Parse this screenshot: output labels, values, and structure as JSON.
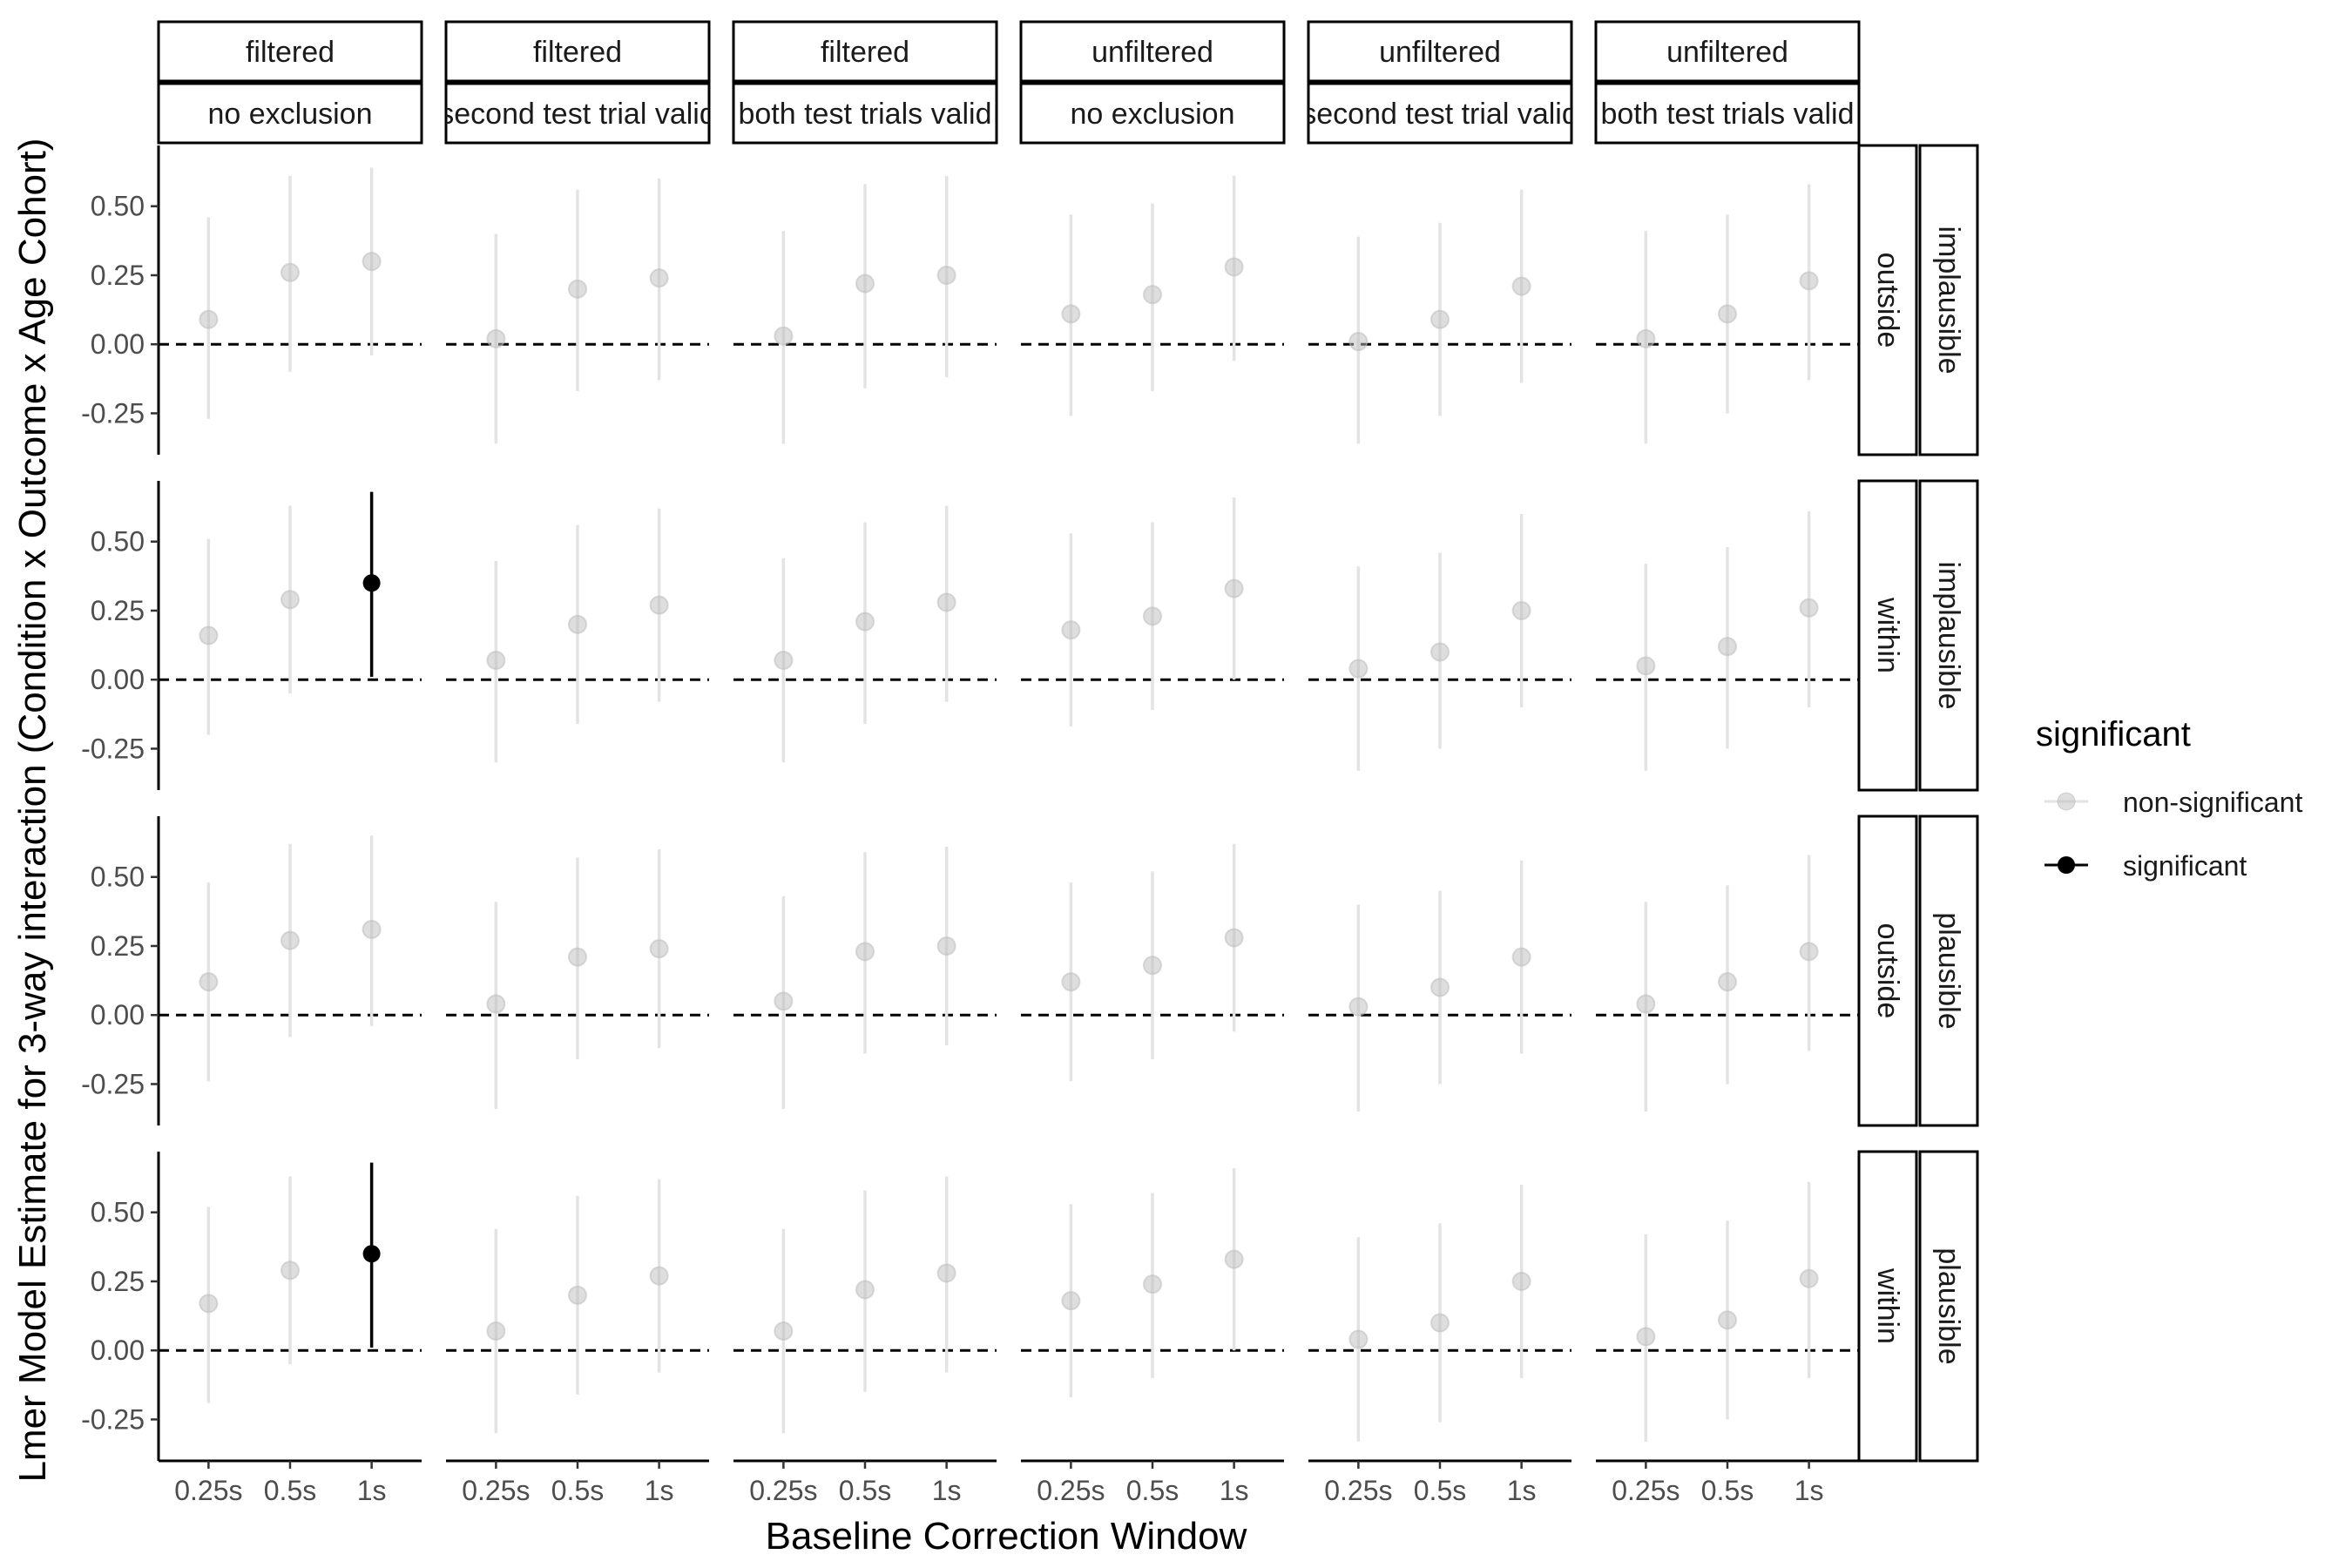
{
  "chart_data": {
    "type": "scatter",
    "title": "",
    "xlabel": "Baseline Correction Window",
    "ylabel": "Lmer Model Estimate for 3-way interaction (Condition x Outcome x Age Cohort)",
    "x_categories": [
      "0.25s",
      "0.5s",
      "1s"
    ],
    "y_ticks": [
      -0.25,
      0.0,
      0.25,
      0.5
    ],
    "y_tick_labels": [
      "-0.25",
      "0.00",
      "0.25",
      "0.50"
    ],
    "ylim": [
      -0.4,
      0.72
    ],
    "reference_line": 0,
    "columns": [
      {
        "top": "filtered",
        "bottom": "no exclusion"
      },
      {
        "top": "filtered",
        "bottom": "second test trial valid"
      },
      {
        "top": "filtered",
        "bottom": "both test trials valid"
      },
      {
        "top": "unfiltered",
        "bottom": "no exclusion"
      },
      {
        "top": "unfiltered",
        "bottom": "second test trial valid"
      },
      {
        "top": "unfiltered",
        "bottom": "both test trials valid"
      }
    ],
    "rows": [
      {
        "inner": "outside",
        "outer": "implausible"
      },
      {
        "inner": "within",
        "outer": "implausible"
      },
      {
        "inner": "outside",
        "outer": "plausible"
      },
      {
        "inner": "within",
        "outer": "plausible"
      }
    ],
    "legend": {
      "title": "significant",
      "items": [
        {
          "label": "non-significant",
          "color": "#bdbdbd"
        },
        {
          "label": "significant",
          "color": "#000000"
        }
      ]
    },
    "colors": {
      "non_significant": "#bdbdbd",
      "significant": "#000000",
      "errorbar_ns": "#e3e3e3"
    },
    "panels": [
      [
        [
          {
            "x": "0.25s",
            "est": 0.09,
            "lo": -0.27,
            "hi": 0.46,
            "sig": false
          },
          {
            "x": "0.5s",
            "est": 0.26,
            "lo": -0.1,
            "hi": 0.61,
            "sig": false
          },
          {
            "x": "1s",
            "est": 0.3,
            "lo": -0.04,
            "hi": 0.64,
            "sig": false
          }
        ],
        [
          {
            "x": "0.25s",
            "est": 0.02,
            "lo": -0.36,
            "hi": 0.4,
            "sig": false
          },
          {
            "x": "0.5s",
            "est": 0.2,
            "lo": -0.17,
            "hi": 0.56,
            "sig": false
          },
          {
            "x": "1s",
            "est": 0.24,
            "lo": -0.13,
            "hi": 0.6,
            "sig": false
          }
        ],
        [
          {
            "x": "0.25s",
            "est": 0.03,
            "lo": -0.36,
            "hi": 0.41,
            "sig": false
          },
          {
            "x": "0.5s",
            "est": 0.22,
            "lo": -0.16,
            "hi": 0.58,
            "sig": false
          },
          {
            "x": "1s",
            "est": 0.25,
            "lo": -0.12,
            "hi": 0.61,
            "sig": false
          }
        ],
        [
          {
            "x": "0.25s",
            "est": 0.11,
            "lo": -0.26,
            "hi": 0.47,
            "sig": false
          },
          {
            "x": "0.5s",
            "est": 0.18,
            "lo": -0.17,
            "hi": 0.51,
            "sig": false
          },
          {
            "x": "1s",
            "est": 0.28,
            "lo": -0.06,
            "hi": 0.61,
            "sig": false
          }
        ],
        [
          {
            "x": "0.25s",
            "est": 0.01,
            "lo": -0.36,
            "hi": 0.39,
            "sig": false
          },
          {
            "x": "0.5s",
            "est": 0.09,
            "lo": -0.26,
            "hi": 0.44,
            "sig": false
          },
          {
            "x": "1s",
            "est": 0.21,
            "lo": -0.14,
            "hi": 0.56,
            "sig": false
          }
        ],
        [
          {
            "x": "0.25s",
            "est": 0.02,
            "lo": -0.36,
            "hi": 0.41,
            "sig": false
          },
          {
            "x": "0.5s",
            "est": 0.11,
            "lo": -0.25,
            "hi": 0.47,
            "sig": false
          },
          {
            "x": "1s",
            "est": 0.23,
            "lo": -0.13,
            "hi": 0.58,
            "sig": false
          }
        ]
      ],
      [
        [
          {
            "x": "0.25s",
            "est": 0.16,
            "lo": -0.2,
            "hi": 0.51,
            "sig": false
          },
          {
            "x": "0.5s",
            "est": 0.29,
            "lo": -0.05,
            "hi": 0.63,
            "sig": false
          },
          {
            "x": "1s",
            "est": 0.35,
            "lo": 0.01,
            "hi": 0.68,
            "sig": true
          }
        ],
        [
          {
            "x": "0.25s",
            "est": 0.07,
            "lo": -0.3,
            "hi": 0.43,
            "sig": false
          },
          {
            "x": "0.5s",
            "est": 0.2,
            "lo": -0.16,
            "hi": 0.56,
            "sig": false
          },
          {
            "x": "1s",
            "est": 0.27,
            "lo": -0.08,
            "hi": 0.62,
            "sig": false
          }
        ],
        [
          {
            "x": "0.25s",
            "est": 0.07,
            "lo": -0.3,
            "hi": 0.44,
            "sig": false
          },
          {
            "x": "0.5s",
            "est": 0.21,
            "lo": -0.16,
            "hi": 0.57,
            "sig": false
          },
          {
            "x": "1s",
            "est": 0.28,
            "lo": -0.08,
            "hi": 0.63,
            "sig": false
          }
        ],
        [
          {
            "x": "0.25s",
            "est": 0.18,
            "lo": -0.17,
            "hi": 0.53,
            "sig": false
          },
          {
            "x": "0.5s",
            "est": 0.23,
            "lo": -0.11,
            "hi": 0.57,
            "sig": false
          },
          {
            "x": "1s",
            "est": 0.33,
            "lo": 0.0,
            "hi": 0.66,
            "sig": false
          }
        ],
        [
          {
            "x": "0.25s",
            "est": 0.04,
            "lo": -0.33,
            "hi": 0.41,
            "sig": false
          },
          {
            "x": "0.5s",
            "est": 0.1,
            "lo": -0.25,
            "hi": 0.46,
            "sig": false
          },
          {
            "x": "1s",
            "est": 0.25,
            "lo": -0.1,
            "hi": 0.6,
            "sig": false
          }
        ],
        [
          {
            "x": "0.25s",
            "est": 0.05,
            "lo": -0.33,
            "hi": 0.42,
            "sig": false
          },
          {
            "x": "0.5s",
            "est": 0.12,
            "lo": -0.25,
            "hi": 0.48,
            "sig": false
          },
          {
            "x": "1s",
            "est": 0.26,
            "lo": -0.1,
            "hi": 0.61,
            "sig": false
          }
        ]
      ],
      [
        [
          {
            "x": "0.25s",
            "est": 0.12,
            "lo": -0.24,
            "hi": 0.48,
            "sig": false
          },
          {
            "x": "0.5s",
            "est": 0.27,
            "lo": -0.08,
            "hi": 0.62,
            "sig": false
          },
          {
            "x": "1s",
            "est": 0.31,
            "lo": -0.04,
            "hi": 0.65,
            "sig": false
          }
        ],
        [
          {
            "x": "0.25s",
            "est": 0.04,
            "lo": -0.34,
            "hi": 0.41,
            "sig": false
          },
          {
            "x": "0.5s",
            "est": 0.21,
            "lo": -0.16,
            "hi": 0.57,
            "sig": false
          },
          {
            "x": "1s",
            "est": 0.24,
            "lo": -0.12,
            "hi": 0.6,
            "sig": false
          }
        ],
        [
          {
            "x": "0.25s",
            "est": 0.05,
            "lo": -0.34,
            "hi": 0.43,
            "sig": false
          },
          {
            "x": "0.5s",
            "est": 0.23,
            "lo": -0.14,
            "hi": 0.59,
            "sig": false
          },
          {
            "x": "1s",
            "est": 0.25,
            "lo": -0.11,
            "hi": 0.61,
            "sig": false
          }
        ],
        [
          {
            "x": "0.25s",
            "est": 0.12,
            "lo": -0.24,
            "hi": 0.48,
            "sig": false
          },
          {
            "x": "0.5s",
            "est": 0.18,
            "lo": -0.16,
            "hi": 0.52,
            "sig": false
          },
          {
            "x": "1s",
            "est": 0.28,
            "lo": -0.06,
            "hi": 0.62,
            "sig": false
          }
        ],
        [
          {
            "x": "0.25s",
            "est": 0.03,
            "lo": -0.35,
            "hi": 0.4,
            "sig": false
          },
          {
            "x": "0.5s",
            "est": 0.1,
            "lo": -0.25,
            "hi": 0.45,
            "sig": false
          },
          {
            "x": "1s",
            "est": 0.21,
            "lo": -0.14,
            "hi": 0.56,
            "sig": false
          }
        ],
        [
          {
            "x": "0.25s",
            "est": 0.04,
            "lo": -0.35,
            "hi": 0.41,
            "sig": false
          },
          {
            "x": "0.5s",
            "est": 0.12,
            "lo": -0.25,
            "hi": 0.47,
            "sig": false
          },
          {
            "x": "1s",
            "est": 0.23,
            "lo": -0.13,
            "hi": 0.58,
            "sig": false
          }
        ]
      ],
      [
        [
          {
            "x": "0.25s",
            "est": 0.17,
            "lo": -0.19,
            "hi": 0.52,
            "sig": false
          },
          {
            "x": "0.5s",
            "est": 0.29,
            "lo": -0.05,
            "hi": 0.63,
            "sig": false
          },
          {
            "x": "1s",
            "est": 0.35,
            "lo": 0.01,
            "hi": 0.68,
            "sig": true
          }
        ],
        [
          {
            "x": "0.25s",
            "est": 0.07,
            "lo": -0.3,
            "hi": 0.44,
            "sig": false
          },
          {
            "x": "0.5s",
            "est": 0.2,
            "lo": -0.16,
            "hi": 0.56,
            "sig": false
          },
          {
            "x": "1s",
            "est": 0.27,
            "lo": -0.08,
            "hi": 0.62,
            "sig": false
          }
        ],
        [
          {
            "x": "0.25s",
            "est": 0.07,
            "lo": -0.3,
            "hi": 0.44,
            "sig": false
          },
          {
            "x": "0.5s",
            "est": 0.22,
            "lo": -0.15,
            "hi": 0.58,
            "sig": false
          },
          {
            "x": "1s",
            "est": 0.28,
            "lo": -0.08,
            "hi": 0.63,
            "sig": false
          }
        ],
        [
          {
            "x": "0.25s",
            "est": 0.18,
            "lo": -0.17,
            "hi": 0.53,
            "sig": false
          },
          {
            "x": "0.5s",
            "est": 0.24,
            "lo": -0.1,
            "hi": 0.57,
            "sig": false
          },
          {
            "x": "1s",
            "est": 0.33,
            "lo": 0.0,
            "hi": 0.66,
            "sig": false
          }
        ],
        [
          {
            "x": "0.25s",
            "est": 0.04,
            "lo": -0.33,
            "hi": 0.41,
            "sig": false
          },
          {
            "x": "0.5s",
            "est": 0.1,
            "lo": -0.26,
            "hi": 0.46,
            "sig": false
          },
          {
            "x": "1s",
            "est": 0.25,
            "lo": -0.1,
            "hi": 0.6,
            "sig": false
          }
        ],
        [
          {
            "x": "0.25s",
            "est": 0.05,
            "lo": -0.33,
            "hi": 0.42,
            "sig": false
          },
          {
            "x": "0.5s",
            "est": 0.11,
            "lo": -0.25,
            "hi": 0.47,
            "sig": false
          },
          {
            "x": "1s",
            "est": 0.26,
            "lo": -0.1,
            "hi": 0.61,
            "sig": false
          }
        ]
      ]
    ]
  }
}
